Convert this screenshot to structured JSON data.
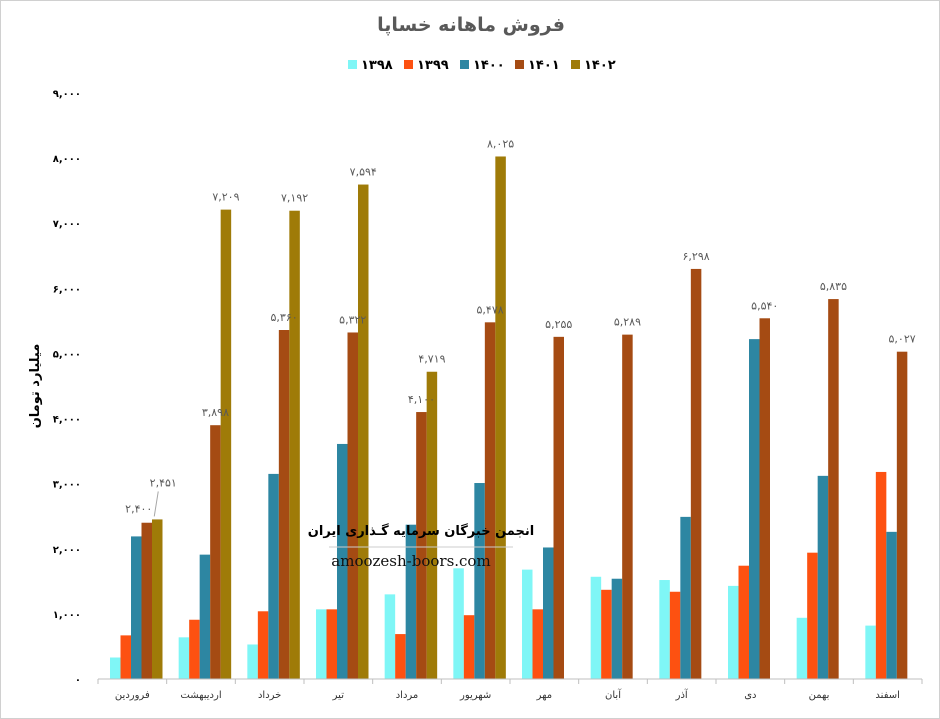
{
  "chart_data": {
    "type": "bar",
    "title": "فروش ماهانه خساپا",
    "ylabel": "میلیارد تومان",
    "ylim": [
      0,
      9000
    ],
    "yticks": [
      "۰",
      "۱,۰۰۰",
      "۲,۰۰۰",
      "۳,۰۰۰",
      "۴,۰۰۰",
      "۵,۰۰۰",
      "۶,۰۰۰",
      "۷,۰۰۰",
      "۸,۰۰۰",
      "۹,۰۰۰"
    ],
    "grid": false,
    "legend_position": "top",
    "categories": [
      "فروردین",
      "اردیبهشت",
      "خرداد",
      "تیر",
      "مرداد",
      "شهریور",
      "مهر",
      "آبان",
      "آذر",
      "دی",
      "بهمن",
      "اسفند"
    ],
    "series": [
      {
        "name": "۱۳۹۸",
        "color": "#7ff6f6",
        "values": [
          330,
          640,
          530,
          1070,
          1300,
          1700,
          1680,
          1570,
          1520,
          1430,
          940,
          820
        ]
      },
      {
        "name": "۱۳۹۹",
        "color": "#fd5111",
        "values": [
          670,
          910,
          1040,
          1070,
          690,
          980,
          1070,
          1370,
          1340,
          1740,
          1940,
          3180
        ]
      },
      {
        "name": "۱۴۰۰",
        "color": "#2d86a2",
        "values": [
          2190,
          1910,
          3150,
          3610,
          2370,
          3010,
          2020,
          1540,
          2490,
          5220,
          3120,
          2260
        ]
      },
      {
        "name": "۱۴۰۱",
        "color": "#a54b13",
        "values": [
          2400,
          3898,
          5360,
          5322,
          4100,
          5478,
          5255,
          5289,
          6298,
          5540,
          5835,
          5027
        ]
      },
      {
        "name": "۱۴۰۲",
        "color": "#9f7b08",
        "values": [
          2451,
          7209,
          7192,
          7594,
          4719,
          8025,
          null,
          null,
          null,
          null,
          null,
          null
        ]
      }
    ],
    "data_labels": [
      {
        "series": 3,
        "category": 0,
        "text": "۲,۴۰۰"
      },
      {
        "series": 4,
        "category": 0,
        "text": "۲,۴۵۱"
      },
      {
        "series": 3,
        "category": 1,
        "text": "۳,۸۹۸"
      },
      {
        "series": 4,
        "category": 1,
        "text": "۷,۲۰۹"
      },
      {
        "series": 3,
        "category": 2,
        "text": "۵,۳۶۰"
      },
      {
        "series": 4,
        "category": 2,
        "text": "۷,۱۹۲"
      },
      {
        "series": 3,
        "category": 3,
        "text": "۵,۳۲۲"
      },
      {
        "series": 4,
        "category": 3,
        "text": "۷,۵۹۴"
      },
      {
        "series": 3,
        "category": 4,
        "text": "۴,۱۰۰"
      },
      {
        "series": 4,
        "category": 4,
        "text": "۴,۷۱۹"
      },
      {
        "series": 3,
        "category": 5,
        "text": "۵,۴۷۸"
      },
      {
        "series": 4,
        "category": 5,
        "text": "۸,۰۲۵"
      },
      {
        "series": 3,
        "category": 6,
        "text": "۵,۲۵۵"
      },
      {
        "series": 3,
        "category": 7,
        "text": "۵,۲۸۹"
      },
      {
        "series": 3,
        "category": 8,
        "text": "۶,۲۹۸"
      },
      {
        "series": 3,
        "category": 9,
        "text": "۵,۵۴۰"
      },
      {
        "series": 3,
        "category": 10,
        "text": "۵,۸۳۵"
      },
      {
        "series": 3,
        "category": 11,
        "text": "۵,۰۲۷"
      }
    ]
  },
  "watermark": {
    "line1": "انجمن خبرگان سرمایه گـذاری ایران",
    "line2": "amoozesh-boors.com"
  }
}
